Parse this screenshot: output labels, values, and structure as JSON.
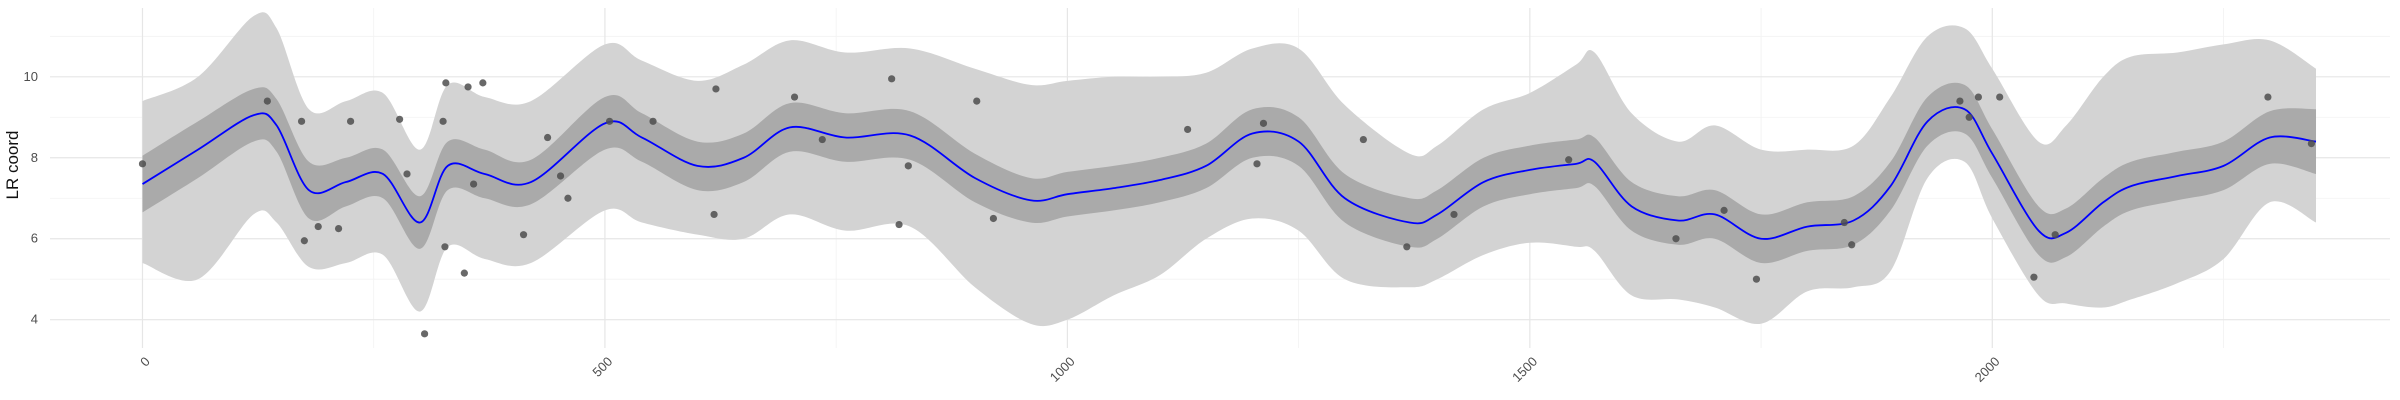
{
  "chart_data": {
    "type": "line",
    "title": "",
    "xlabel": "",
    "ylabel": "LR coord",
    "xlim": [
      -100,
      2430
    ],
    "ylim": [
      3.3,
      11.7
    ],
    "x_ticks": [
      0,
      500,
      1000,
      1500,
      2000
    ],
    "x_tick_labels": [
      "0",
      "500",
      "1000",
      "1500",
      "2000"
    ],
    "y_ticks": [
      4,
      6,
      8,
      10
    ],
    "y_tick_labels": [
      "4",
      "6",
      "8",
      "10"
    ],
    "grid": true,
    "legend": "none",
    "colors": {
      "line": "#0000ff",
      "band_inner": "#aaaaaa",
      "band_outer": "#d3d3d3",
      "points": "#4d4d4d"
    },
    "fit": {
      "x": [
        0,
        60,
        120,
        145,
        180,
        220,
        260,
        300,
        330,
        370,
        420,
        500,
        540,
        600,
        650,
        700,
        760,
        830,
        900,
        960,
        1000,
        1050,
        1100,
        1150,
        1200,
        1250,
        1300,
        1370,
        1400,
        1450,
        1500,
        1550,
        1570,
        1610,
        1660,
        1700,
        1750,
        1800,
        1850,
        1890,
        1930,
        1970,
        2000,
        2050,
        2080,
        2120,
        2150,
        2200,
        2250,
        2300,
        2350
      ],
      "y": [
        7.35,
        8.2,
        9.05,
        8.8,
        7.2,
        7.4,
        7.6,
        6.4,
        7.8,
        7.6,
        7.4,
        8.85,
        8.5,
        7.8,
        8.0,
        8.75,
        8.5,
        8.55,
        7.5,
        6.95,
        7.1,
        7.25,
        7.45,
        7.8,
        8.6,
        8.4,
        7.0,
        6.4,
        6.6,
        7.4,
        7.7,
        7.85,
        7.9,
        6.8,
        6.45,
        6.6,
        6.0,
        6.3,
        6.45,
        7.3,
        8.9,
        9.2,
        8.1,
        6.2,
        6.15,
        6.9,
        7.3,
        7.55,
        7.8,
        8.5,
        8.4
      ],
      "inner_low": [
        6.65,
        7.5,
        8.4,
        8.15,
        6.5,
        6.8,
        7.0,
        5.75,
        7.2,
        7.0,
        6.85,
        8.2,
        7.9,
        7.2,
        7.4,
        8.15,
        7.9,
        7.95,
        6.9,
        6.4,
        6.55,
        6.7,
        6.9,
        7.25,
        8.0,
        7.8,
        6.4,
        5.8,
        6.0,
        6.8,
        7.1,
        7.25,
        7.3,
        6.2,
        5.85,
        6.0,
        5.4,
        5.7,
        5.85,
        6.7,
        8.3,
        8.6,
        7.5,
        5.6,
        5.55,
        6.3,
        6.7,
        6.95,
        7.2,
        7.85,
        7.6
      ],
      "inner_high": [
        8.05,
        8.9,
        9.7,
        9.45,
        7.9,
        8.0,
        8.2,
        7.05,
        8.4,
        8.2,
        7.95,
        9.5,
        9.1,
        8.4,
        8.6,
        9.35,
        9.1,
        9.15,
        8.1,
        7.5,
        7.65,
        7.8,
        8.0,
        8.35,
        9.2,
        9.0,
        7.6,
        7.0,
        7.2,
        8.0,
        8.3,
        8.45,
        8.5,
        7.4,
        7.05,
        7.2,
        6.6,
        6.9,
        7.05,
        7.9,
        9.5,
        9.8,
        8.7,
        6.8,
        6.75,
        7.5,
        7.9,
        8.15,
        8.4,
        9.15,
        9.2
      ],
      "outer_low": [
        5.4,
        5.0,
        6.6,
        6.4,
        5.3,
        5.4,
        5.6,
        4.2,
        5.8,
        5.5,
        5.4,
        6.7,
        6.4,
        6.1,
        6.0,
        6.6,
        6.2,
        6.3,
        4.8,
        3.9,
        4.0,
        4.6,
        5.1,
        6.0,
        6.5,
        6.2,
        5.0,
        4.8,
        5.0,
        5.6,
        5.9,
        5.8,
        5.7,
        4.6,
        4.5,
        4.3,
        3.9,
        4.7,
        4.8,
        5.2,
        7.5,
        7.9,
        6.5,
        4.6,
        4.4,
        4.3,
        4.5,
        4.9,
        5.5,
        6.9,
        6.4
      ],
      "outer_high": [
        9.4,
        10.0,
        11.5,
        11.2,
        9.2,
        9.4,
        9.6,
        8.2,
        9.8,
        9.5,
        9.4,
        10.8,
        10.4,
        9.9,
        10.3,
        10.9,
        10.6,
        10.7,
        10.2,
        9.8,
        9.9,
        10.0,
        10.0,
        10.1,
        10.7,
        10.7,
        9.3,
        8.1,
        8.3,
        9.2,
        9.6,
        10.3,
        10.6,
        9.1,
        8.4,
        8.8,
        8.2,
        8.2,
        8.3,
        9.5,
        11.0,
        11.2,
        10.2,
        8.4,
        8.8,
        10.0,
        10.5,
        10.6,
        10.8,
        10.9,
        10.2
      ]
    },
    "points": [
      {
        "x": 0,
        "y": 7.85
      },
      {
        "x": 135,
        "y": 9.4
      },
      {
        "x": 172,
        "y": 8.9
      },
      {
        "x": 175,
        "y": 5.95
      },
      {
        "x": 190,
        "y": 6.3
      },
      {
        "x": 212,
        "y": 6.25
      },
      {
        "x": 225,
        "y": 8.9
      },
      {
        "x": 278,
        "y": 8.95
      },
      {
        "x": 286,
        "y": 7.6
      },
      {
        "x": 305,
        "y": 3.65
      },
      {
        "x": 325,
        "y": 8.9
      },
      {
        "x": 328,
        "y": 9.85
      },
      {
        "x": 327,
        "y": 5.8
      },
      {
        "x": 348,
        "y": 5.15
      },
      {
        "x": 352,
        "y": 9.75
      },
      {
        "x": 358,
        "y": 7.35
      },
      {
        "x": 368,
        "y": 9.85
      },
      {
        "x": 412,
        "y": 6.1
      },
      {
        "x": 438,
        "y": 8.5
      },
      {
        "x": 452,
        "y": 7.55
      },
      {
        "x": 460,
        "y": 7.0
      },
      {
        "x": 505,
        "y": 8.9
      },
      {
        "x": 552,
        "y": 8.9
      },
      {
        "x": 618,
        "y": 6.6
      },
      {
        "x": 620,
        "y": 9.7
      },
      {
        "x": 705,
        "y": 9.5
      },
      {
        "x": 735,
        "y": 8.45
      },
      {
        "x": 810,
        "y": 9.95
      },
      {
        "x": 818,
        "y": 6.35
      },
      {
        "x": 828,
        "y": 7.8
      },
      {
        "x": 902,
        "y": 9.4
      },
      {
        "x": 920,
        "y": 6.5
      },
      {
        "x": 1130,
        "y": 8.7
      },
      {
        "x": 1205,
        "y": 7.85
      },
      {
        "x": 1212,
        "y": 8.85
      },
      {
        "x": 1320,
        "y": 8.45
      },
      {
        "x": 1367,
        "y": 5.8
      },
      {
        "x": 1418,
        "y": 6.6
      },
      {
        "x": 1542,
        "y": 7.95
      },
      {
        "x": 1658,
        "y": 6.0
      },
      {
        "x": 1710,
        "y": 6.7
      },
      {
        "x": 1745,
        "y": 5.0
      },
      {
        "x": 1840,
        "y": 6.4
      },
      {
        "x": 1848,
        "y": 5.85
      },
      {
        "x": 1965,
        "y": 9.4
      },
      {
        "x": 1975,
        "y": 9.0
      },
      {
        "x": 1985,
        "y": 9.5
      },
      {
        "x": 2008,
        "y": 9.5
      },
      {
        "x": 2045,
        "y": 5.05
      },
      {
        "x": 2068,
        "y": 6.1
      },
      {
        "x": 2298,
        "y": 9.5
      },
      {
        "x": 2345,
        "y": 8.35
      }
    ]
  }
}
